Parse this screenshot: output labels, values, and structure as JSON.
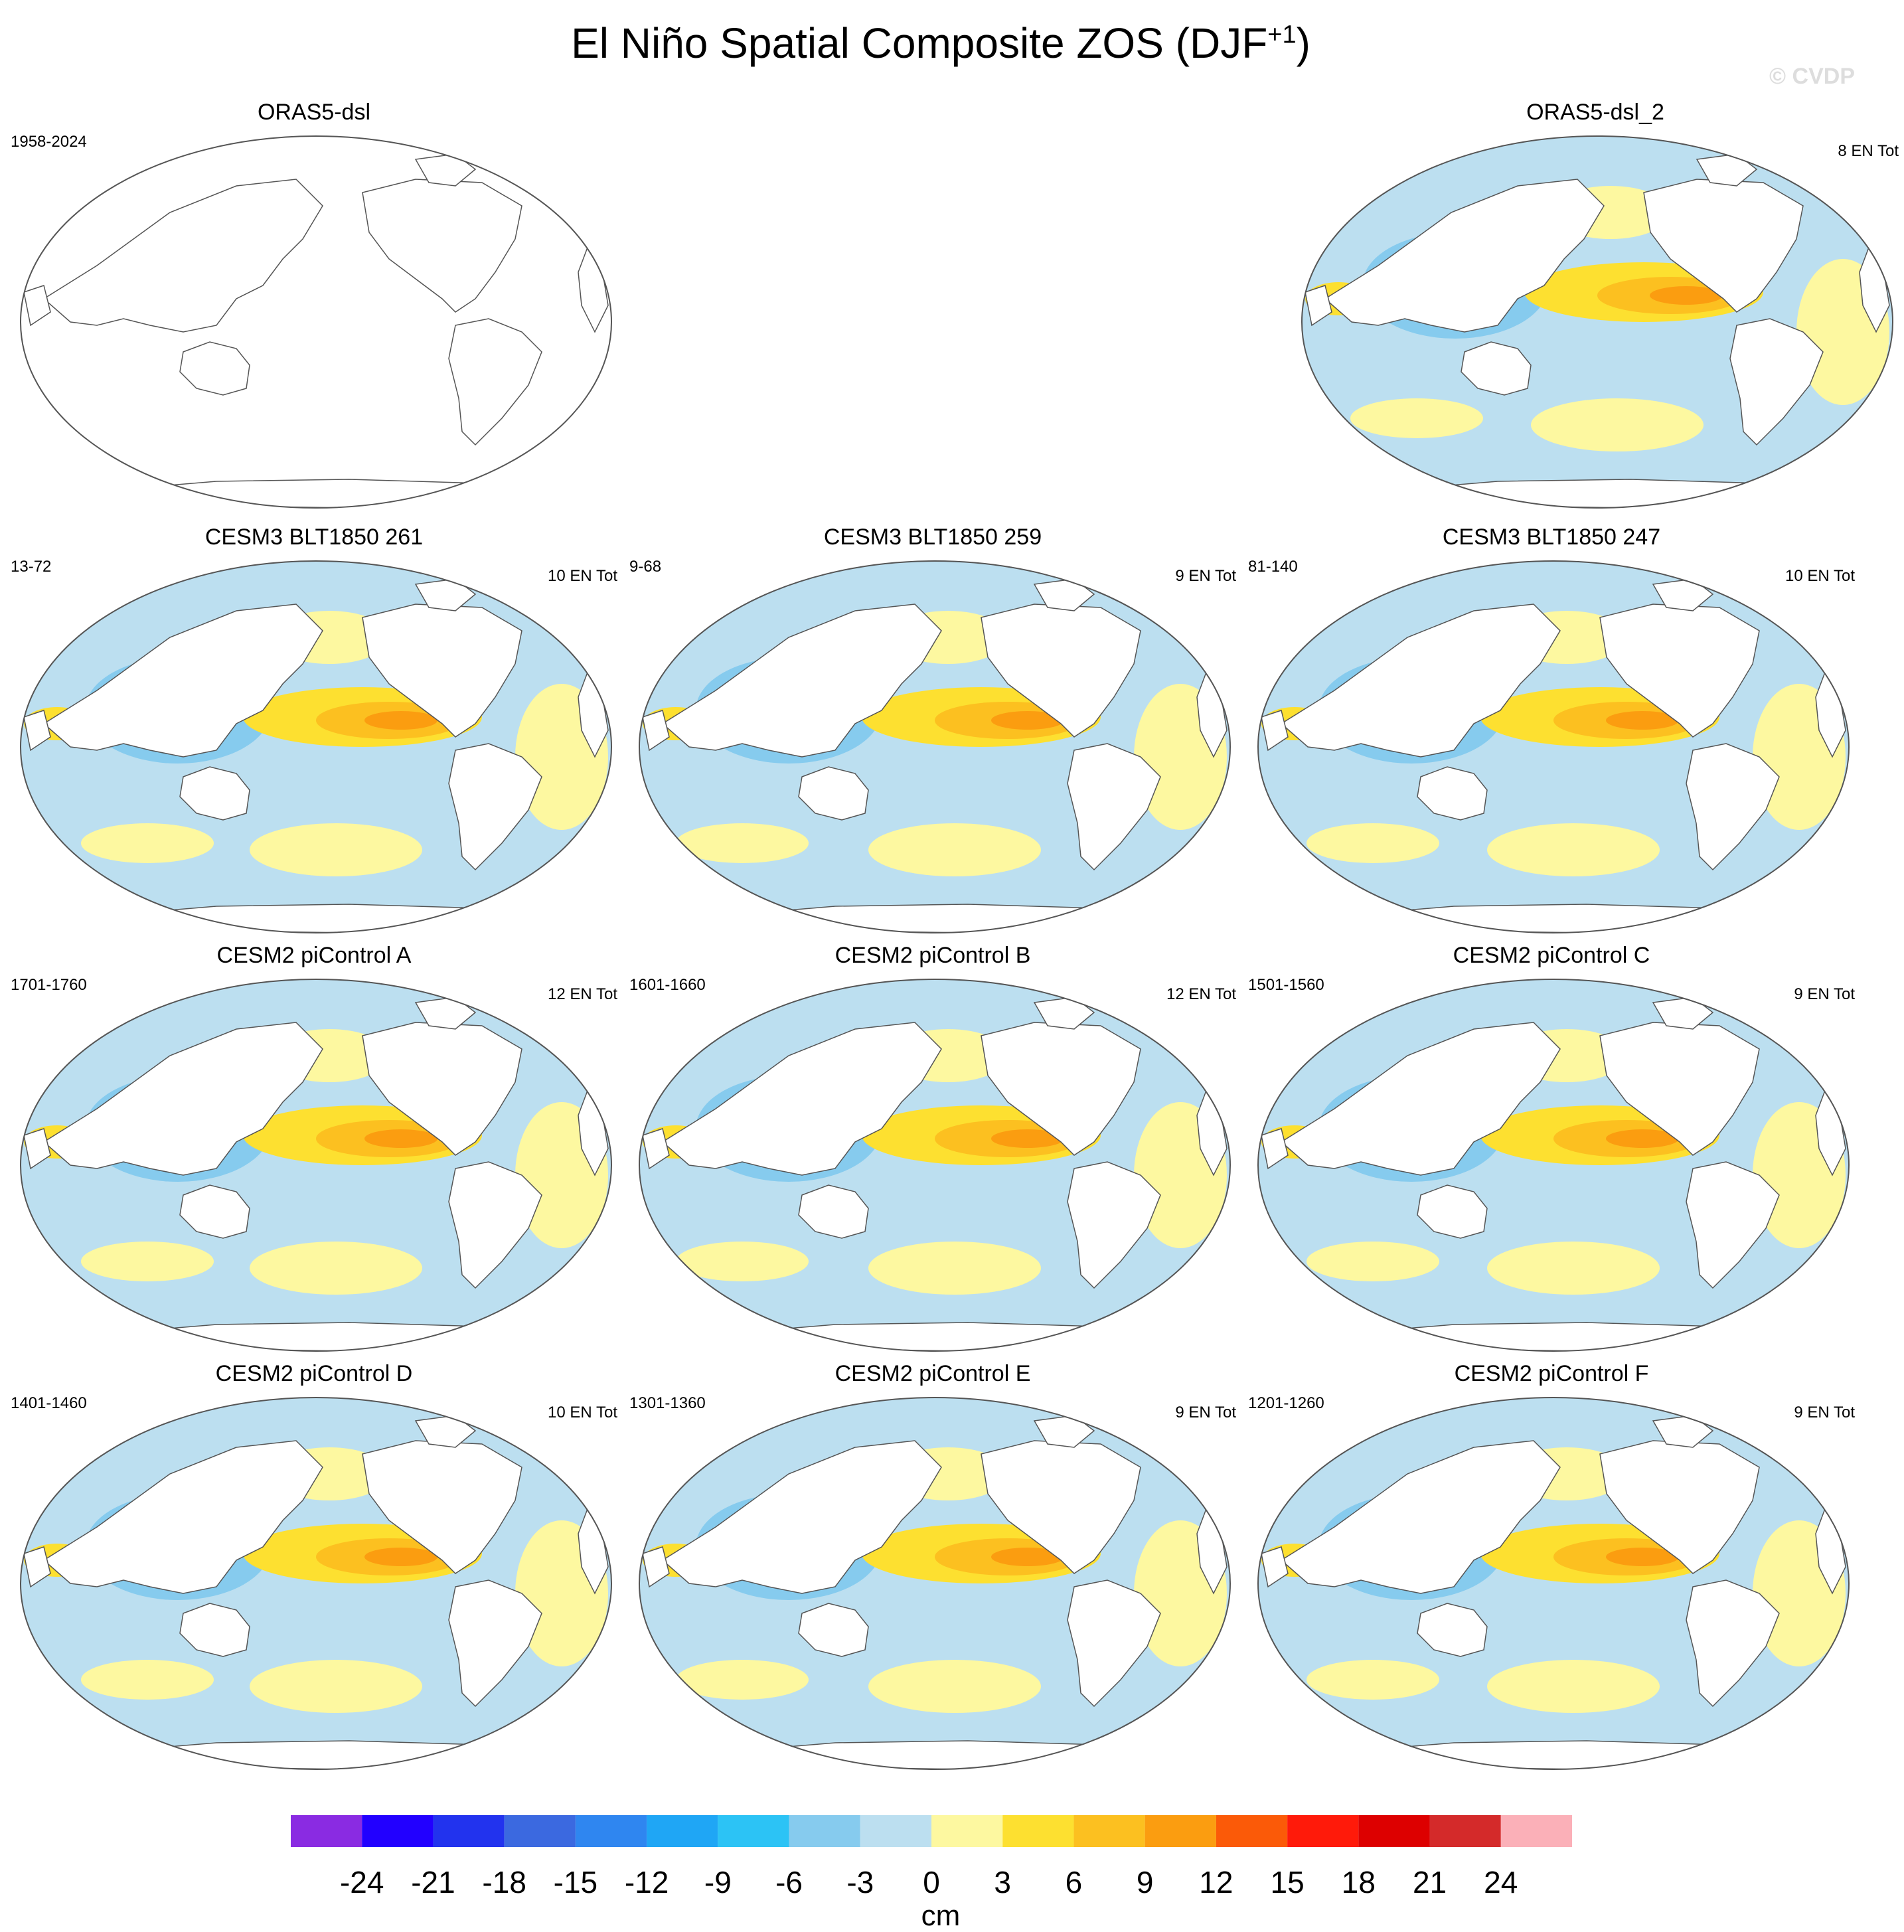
{
  "figure": {
    "title": "El Niño Spatial Composite ZOS (DJF",
    "title_superscript": "+1",
    "title_suffix": ")",
    "copyright": "© CVDP"
  },
  "panels": [
    {
      "title": "ORAS5-dsl",
      "period": "1958-2024",
      "count": "",
      "empty": true,
      "variant": 0
    },
    {
      "title": "ORAS5-dsl_2",
      "period": "",
      "count": "8 EN Tot",
      "empty": false,
      "variant": 1
    },
    {
      "title": "CESM3 BLT1850 261",
      "period": "13-72",
      "count": "10 EN Tot",
      "empty": false,
      "variant": 2
    },
    {
      "title": "CESM3 BLT1850 259",
      "period": "9-68",
      "count": "9 EN Tot",
      "empty": false,
      "variant": 3
    },
    {
      "title": "CESM3 BLT1850 247",
      "period": "81-140",
      "count": "10 EN Tot",
      "empty": false,
      "variant": 4
    },
    {
      "title": "CESM2 piControl A",
      "period": "1701-1760",
      "count": "12 EN Tot",
      "empty": false,
      "variant": 5
    },
    {
      "title": "CESM2 piControl B",
      "period": "1601-1660",
      "count": "12 EN Tot",
      "empty": false,
      "variant": 6
    },
    {
      "title": "CESM2 piControl C",
      "period": "1501-1560",
      "count": "9 EN Tot",
      "empty": false,
      "variant": 7
    },
    {
      "title": "CESM2 piControl D",
      "period": "1401-1460",
      "count": "10 EN Tot",
      "empty": false,
      "variant": 8
    },
    {
      "title": "CESM2 piControl E",
      "period": "1301-1360",
      "count": "9 EN Tot",
      "empty": false,
      "variant": 9
    },
    {
      "title": "CESM2 piControl F",
      "period": "1201-1260",
      "count": "9 EN Tot",
      "empty": false,
      "variant": 10
    }
  ],
  "colorbar": {
    "units": "cm",
    "colors": [
      "#8a2be2",
      "#2200ff",
      "#2233ee",
      "#3b69e0",
      "#2f86f0",
      "#1fa6f5",
      "#2cc3f5",
      "#86cbee",
      "#bcdff0",
      "#fdf8a0",
      "#fde030",
      "#fcc020",
      "#fb9d10",
      "#fb5a08",
      "#ff1a0a",
      "#dd0000",
      "#d42a2a",
      "#fbb0b8"
    ],
    "labels": [
      "-24",
      "-21",
      "-18",
      "-15",
      "-12",
      "-9",
      "-6",
      "-3",
      "0",
      "3",
      "6",
      "9",
      "12",
      "15",
      "18",
      "21",
      "24"
    ]
  },
  "map_colors": {
    "light_blue": "#bcdff0",
    "mid_blue": "#86cbee",
    "blue": "#2f86f0",
    "dark_blue": "#2233ee",
    "light_yellow": "#fdf8a0",
    "yellow": "#fde030",
    "orange": "#fcc020",
    "dark_orange": "#fb9d10",
    "land": "#ffffff",
    "coast": "#555555"
  }
}
